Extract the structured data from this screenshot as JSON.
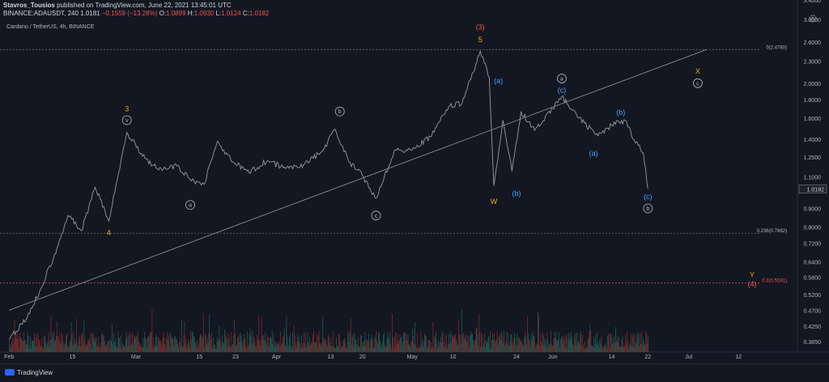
{
  "header": {
    "author": "Stavros_Tousios",
    "publish_text": "published on TradingView.com, June 22, 2021 13:45:01 UTC",
    "symbol": "BINANCE:ADAUSDT, 240",
    "last": "1.0181",
    "change": "−0.1559 (−13.28%)",
    "o_label": "O:",
    "o": "1.0899",
    "h_label": "H:",
    "h": "1.0930",
    "l_label": "L:",
    "l": "1.0124",
    "c_label": "C:",
    "c": "1.0182"
  },
  "chart_title": "Cardano / TetherUS, 4h, BINANCE",
  "footer": {
    "brand": "TradingView"
  },
  "icons": {
    "settings": "gear-icon",
    "brand": "tradingview-logo-icon"
  },
  "colors": {
    "background": "#131722",
    "candle": "#9598a1",
    "grid": "#2a2e39",
    "orange": "#f7a600",
    "blue": "#42a5f5",
    "red": "#ef5350",
    "white_label": "#b2b5be",
    "vol_up": "#1b5e57",
    "vol_down": "#7a2a2a"
  },
  "chart_data": {
    "type": "line",
    "scale": "log",
    "ylim": [
      0.36,
      3.4
    ],
    "y_ticks": [
      "3.4000",
      "3.0000",
      "2.6000",
      "2.3000",
      "2.0000",
      "1.8000",
      "1.6000",
      "1.4000",
      "1.2500",
      "1.1000",
      "1.0182",
      "0.9000",
      "0.8000",
      "0.7200",
      "0.6400",
      "0.5800",
      "0.5200",
      "0.4700",
      "0.4250",
      "0.3850"
    ],
    "x_ticks": [
      "Feb",
      "15",
      "Mar",
      "15",
      "23",
      "Apr",
      "13",
      "20",
      "May",
      "10",
      "24",
      "Jun",
      "14",
      "22",
      "Jul",
      "12"
    ],
    "price_label": "1.0182",
    "series": [
      {
        "x": [
          "2021-02-01",
          "2021-02-05",
          "2021-02-08",
          "2021-02-11",
          "2021-02-14",
          "2021-02-17",
          "2021-02-20",
          "2021-02-23",
          "2021-02-27",
          "2021-03-03",
          "2021-03-06",
          "2021-03-10",
          "2021-03-13",
          "2021-03-16",
          "2021-03-19",
          "2021-03-22",
          "2021-03-26",
          "2021-03-30",
          "2021-04-03",
          "2021-04-07",
          "2021-04-11",
          "2021-04-14",
          "2021-04-17",
          "2021-04-20",
          "2021-04-23",
          "2021-04-27",
          "2021-05-01",
          "2021-05-05",
          "2021-05-09",
          "2021-05-12",
          "2021-05-15",
          "2021-05-16",
          "2021-05-18",
          "2021-05-19",
          "2021-05-21",
          "2021-05-23",
          "2021-05-25",
          "2021-05-28",
          "2021-06-01",
          "2021-06-03",
          "2021-06-05",
          "2021-06-08",
          "2021-06-11",
          "2021-06-14",
          "2021-06-17",
          "2021-06-19",
          "2021-06-21",
          "2021-06-22"
        ],
        "close": [
          0.39,
          0.45,
          0.54,
          0.67,
          0.86,
          0.78,
          1.03,
          0.83,
          1.46,
          1.24,
          1.15,
          1.18,
          1.08,
          1.05,
          1.38,
          1.22,
          1.13,
          1.22,
          1.16,
          1.19,
          1.29,
          1.49,
          1.21,
          1.11,
          0.96,
          1.3,
          1.31,
          1.42,
          1.72,
          1.76,
          2.25,
          2.46,
          2.07,
          1.04,
          1.58,
          1.14,
          1.67,
          1.48,
          1.7,
          1.84,
          1.7,
          1.55,
          1.43,
          1.53,
          1.58,
          1.39,
          1.28,
          1.02
        ]
      }
    ],
    "fib_levels": [
      {
        "label": "0(2.4780)",
        "value": 2.478
      },
      {
        "label": "0.236(0.7682)",
        "value": 0.7682
      },
      {
        "label": "0.3(0.5591)",
        "value": 0.5591
      }
    ],
    "trendline": {
      "from": {
        "x": "2021-02-01",
        "y": 0.47
      },
      "to": {
        "x": "2021-07-05",
        "y": 2.48
      }
    },
    "annotations": [
      {
        "text": "3",
        "color": "orange",
        "x": "2021-02-27",
        "y": 1.7
      },
      {
        "text": "v",
        "color": "white",
        "circle": true,
        "x": "2021-02-27",
        "y": 1.58
      },
      {
        "text": "4",
        "color": "orange",
        "x": "2021-02-23",
        "y": 0.77
      },
      {
        "text": "a",
        "color": "white",
        "circle": true,
        "x": "2021-03-13",
        "y": 0.92
      },
      {
        "text": "b",
        "color": "white",
        "circle": true,
        "x": "2021-04-15",
        "y": 1.67
      },
      {
        "text": "c",
        "color": "white",
        "circle": true,
        "x": "2021-04-23",
        "y": 0.86
      },
      {
        "text": "(3)",
        "color": "red",
        "x": "2021-05-16",
        "y": 2.86
      },
      {
        "text": "5",
        "color": "orange",
        "x": "2021-05-16",
        "y": 2.64
      },
      {
        "text": "(a)",
        "color": "blue",
        "x": "2021-05-20",
        "y": 2.03
      },
      {
        "text": "W",
        "color": "orange",
        "x": "2021-05-19",
        "y": 0.94
      },
      {
        "text": "(b)",
        "color": "blue",
        "x": "2021-05-24",
        "y": 0.99
      },
      {
        "text": "a",
        "color": "white",
        "circle": true,
        "x": "2021-06-03",
        "y": 2.06
      },
      {
        "text": "(c)",
        "color": "blue",
        "x": "2021-06-03",
        "y": 1.91
      },
      {
        "text": "(b)",
        "color": "blue",
        "x": "2021-06-16",
        "y": 1.66
      },
      {
        "text": "(a)",
        "color": "blue",
        "x": "2021-06-10",
        "y": 1.28
      },
      {
        "text": "(c)",
        "color": "blue",
        "x": "2021-06-22",
        "y": 0.97
      },
      {
        "text": "b",
        "color": "white",
        "circle": true,
        "x": "2021-06-22",
        "y": 0.9
      },
      {
        "text": "X",
        "color": "orange",
        "x": "2021-07-03",
        "y": 2.16
      },
      {
        "text": "c",
        "color": "white",
        "circle": true,
        "x": "2021-07-03",
        "y": 2.0
      },
      {
        "text": "Y",
        "color": "orange",
        "x": "2021-07-15",
        "y": 0.59
      },
      {
        "text": "(4)",
        "color": "red",
        "x": "2021-07-15",
        "y": 0.555
      }
    ]
  }
}
